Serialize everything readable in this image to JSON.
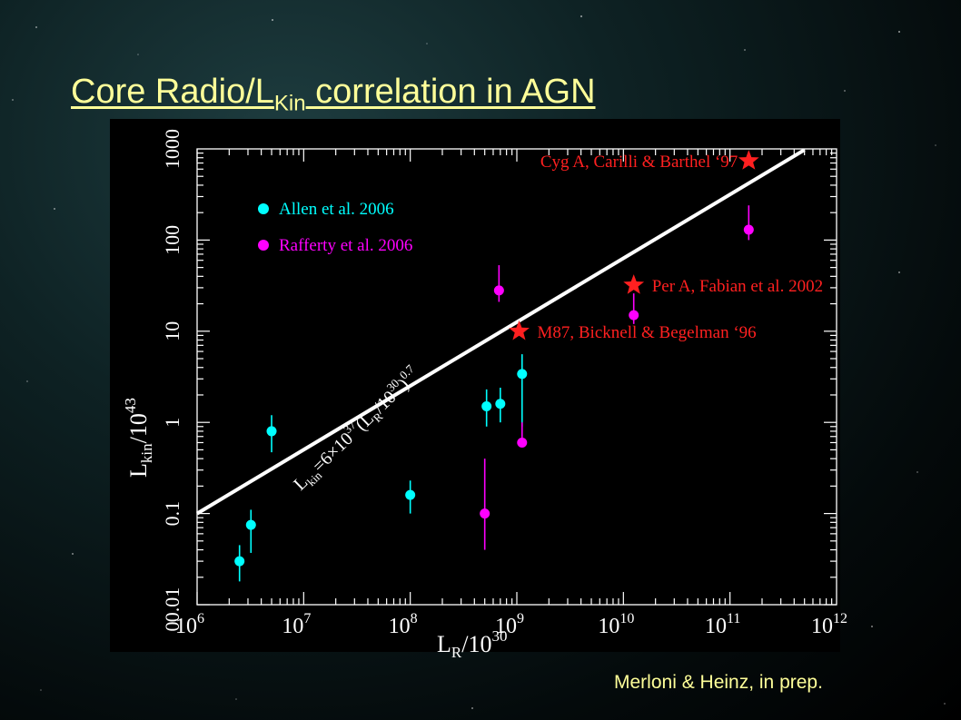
{
  "slide": {
    "title_main": "Core Radio/L",
    "title_sub": "Kin",
    "title_rest": " correlation in AGN",
    "credit": "Merloni & Heinz, in prep."
  },
  "colors": {
    "title": "#ffff99",
    "allen": "#00ffff",
    "rafferty": "#ff00ff",
    "reference": "#ff2020",
    "fit_line": "#ffffff",
    "axes": "#ffffff"
  },
  "chart_data": {
    "type": "scatter",
    "log_x": true,
    "log_y": true,
    "xlim": [
      1000000.0,
      1000000000000.0
    ],
    "ylim": [
      0.01,
      1000
    ],
    "xlabel": {
      "base": "L",
      "sub": "R",
      "rest": "/10",
      "sup": "30"
    },
    "ylabel": {
      "base": "L",
      "sub": "kin",
      "rest": "/10",
      "sup": "43"
    },
    "x_tick_labels": [
      {
        "x": 1000000.0,
        "base": "10",
        "exp": "6"
      },
      {
        "x": 10000000.0,
        "base": "10",
        "exp": "7"
      },
      {
        "x": 100000000.0,
        "base": "10",
        "exp": "8"
      },
      {
        "x": 1000000000.0,
        "base": "10",
        "exp": "9"
      },
      {
        "x": 10000000000.0,
        "base": "10",
        "exp": "10"
      },
      {
        "x": 100000000000.0,
        "base": "10",
        "exp": "11"
      },
      {
        "x": 1000000000000.0,
        "base": "10",
        "exp": "12"
      }
    ],
    "y_tick_labels": [
      {
        "y": 0.01,
        "label": "0.01"
      },
      {
        "y": 0.1,
        "label": "0.1"
      },
      {
        "y": 1,
        "label": "1"
      },
      {
        "y": 10,
        "label": "10"
      },
      {
        "y": 100,
        "label": "100"
      },
      {
        "y": 1000,
        "label": "1000"
      }
    ],
    "y_zero_label": "0",
    "legend": {
      "position": "top-left",
      "entries": [
        {
          "name": "Allen et al. 2006",
          "color": "#00ffff"
        },
        {
          "name": "Rafferty et al. 2006",
          "color": "#ff00ff"
        }
      ]
    },
    "series": [
      {
        "name": "Allen et al. 2006",
        "color": "#00ffff",
        "points": [
          {
            "x": 2500000.0,
            "y": 0.03,
            "ylo": 0.018,
            "yhi": 0.045
          },
          {
            "x": 3200000.0,
            "y": 0.075,
            "ylo": 0.037,
            "yhi": 0.11
          },
          {
            "x": 5000000.0,
            "y": 0.8,
            "ylo": 0.47,
            "yhi": 1.2
          },
          {
            "x": 100000000.0,
            "y": 0.16,
            "ylo": 0.1,
            "yhi": 0.23
          },
          {
            "x": 520000000.0,
            "y": 1.5,
            "ylo": 0.9,
            "yhi": 2.3
          },
          {
            "x": 700000000.0,
            "y": 1.6,
            "ylo": 1.0,
            "yhi": 2.4
          },
          {
            "x": 1120000000.0,
            "y": 3.4,
            "ylo": 0.9,
            "yhi": 5.6
          }
        ]
      },
      {
        "name": "Rafferty et al. 2006",
        "color": "#ff00ff",
        "points": [
          {
            "x": 500000000.0,
            "y": 0.1,
            "ylo": 0.04,
            "yhi": 0.4
          },
          {
            "x": 680000000.0,
            "y": 28,
            "ylo": 21,
            "yhi": 53
          },
          {
            "x": 1120000000.0,
            "y": 0.6,
            "ylo": 0.55,
            "yhi": 1.0
          },
          {
            "x": 12500000000.0,
            "y": 15,
            "ylo": 12,
            "yhi": 26
          },
          {
            "x": 150000000000.0,
            "y": 130,
            "ylo": 100,
            "yhi": 240
          }
        ]
      }
    ],
    "reference_points": [
      {
        "name": "Cyg A, Carilli & Barthel ‘97",
        "x": 150000000000.0,
        "y": 740
      },
      {
        "name": "Per A, Fabian et al. 2002",
        "x": 12500000000.0,
        "y": 32
      },
      {
        "name": "M87, Bicknell & Begelman ‘96",
        "x": 1050000000.0,
        "y": 10
      }
    ],
    "fit_line": {
      "label_prefix": "L",
      "label_sub": "kin",
      "label_eq": "=6×10",
      "label_exp1": "37",
      "label_mid": "(L",
      "label_sub2": "R",
      "label_mid2": "/10",
      "label_exp2": "30",
      "label_end": ")",
      "label_exp3": "0.7",
      "normalization": 6e+37,
      "slope": 0.7,
      "x_range": [
        1000000.0,
        500000000000.0
      ],
      "y_at_xmin": 0.1
    }
  }
}
